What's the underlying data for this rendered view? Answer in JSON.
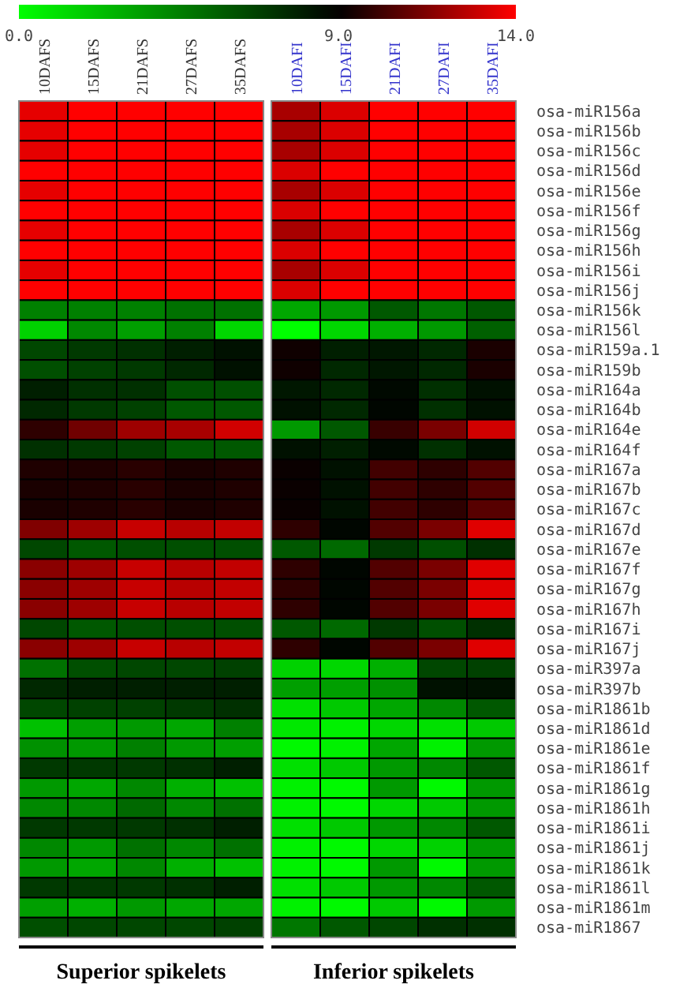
{
  "chart_data": {
    "type": "heatmap",
    "categories": [
      "10DAFS",
      "15DAFS",
      "21DAFS",
      "27DAFS",
      "35DAFS",
      "10DAFI",
      "15DAFI",
      "21DAFI",
      "27DAFI",
      "35DAFI"
    ],
    "y_categories": [
      "osa-miR156a",
      "osa-miR156b",
      "osa-miR156c",
      "osa-miR156d",
      "osa-miR156e",
      "osa-miR156f",
      "osa-miR156g",
      "osa-miR156h",
      "osa-miR156i",
      "osa-miR156j",
      "osa-miR156k",
      "osa-miR156l",
      "osa-miR159a.1",
      "osa-miR159b",
      "osa-miR164a",
      "osa-miR164b",
      "osa-miR164e",
      "osa-miR164f",
      "osa-miR167a",
      "osa-miR167b",
      "osa-miR167c",
      "osa-miR167d",
      "osa-miR167e",
      "osa-miR167f",
      "osa-miR167g",
      "osa-miR167h",
      "osa-miR167i",
      "osa-miR167j",
      "osa-miR397a",
      "osa-miR397b",
      "osa-miR1861b",
      "osa-miR1861d",
      "osa-miR1861e",
      "osa-miR1861f",
      "osa-miR1861g",
      "osa-miR1861h",
      "osa-miR1861i",
      "osa-miR1861j",
      "osa-miR1861k",
      "osa-miR1861l",
      "osa-miR1861m",
      "osa-miR1867"
    ],
    "clim": [
      0,
      14
    ],
    "cticks": [
      {
        "value": 0,
        "label": "0.0"
      },
      {
        "value": 9,
        "label": "9.0"
      },
      {
        "value": 14,
        "label": "14.0"
      }
    ],
    "annotations": [
      "Superior spikelets",
      "Inferior spikelets"
    ],
    "cells": [
      [
        13.5,
        14,
        14,
        14,
        14,
        12.3,
        13.3,
        14,
        14,
        14
      ],
      [
        13.5,
        14,
        14,
        14,
        14,
        12.3,
        13.3,
        14,
        14,
        14
      ],
      [
        13.5,
        14,
        14,
        14,
        14,
        12.3,
        13.3,
        14,
        14,
        14
      ],
      [
        14,
        14,
        14,
        14,
        14,
        13.3,
        14,
        14,
        14,
        14
      ],
      [
        13.5,
        14,
        14,
        14,
        14,
        12.3,
        13.3,
        14,
        14,
        14
      ],
      [
        14,
        14,
        14,
        14,
        14,
        13.3,
        14,
        14,
        14,
        14
      ],
      [
        13.5,
        14,
        14,
        14,
        14,
        12.3,
        13.3,
        14,
        14,
        14
      ],
      [
        14,
        14,
        14,
        14,
        14,
        13.3,
        14,
        14,
        14,
        14
      ],
      [
        13.5,
        14,
        14,
        14,
        14,
        12.3,
        13.3,
        14,
        14,
        14
      ],
      [
        14,
        14,
        14,
        14,
        14,
        13.3,
        14,
        14,
        14,
        14
      ],
      [
        4.5,
        4.5,
        4.5,
        5,
        5,
        3.1,
        3.6,
        5.9,
        4.8,
        5.9
      ],
      [
        1.6,
        4.2,
        3.4,
        4.5,
        1.4,
        0,
        1.4,
        2.8,
        3.6,
        5.6
      ],
      [
        6.5,
        7,
        7.3,
        7.9,
        8.4,
        9.3,
        7.9,
        8.2,
        7.6,
        9.5
      ],
      [
        6.2,
        6.7,
        7,
        7.6,
        8.4,
        9.3,
        7.6,
        8.2,
        7.6,
        9.5
      ],
      [
        7.9,
        7.3,
        7.3,
        6.2,
        6.2,
        8.2,
        7.6,
        8.7,
        7.3,
        8.4
      ],
      [
        7.6,
        7,
        6.7,
        5.9,
        5.9,
        8.4,
        7.6,
        8.8,
        7.3,
        8.4
      ],
      [
        9.9,
        11.2,
        12.1,
        12.3,
        13.1,
        3.6,
        5.9,
        10.1,
        11.4,
        13.1
      ],
      [
        7.3,
        7,
        6.7,
        5.9,
        5.9,
        8.4,
        7.9,
        8.7,
        7.3,
        8.4
      ],
      [
        9.6,
        9.6,
        9.8,
        9.5,
        9.6,
        9.2,
        8.4,
        10.3,
        9.9,
        10.6
      ],
      [
        9.5,
        9.6,
        9.8,
        9.5,
        9.6,
        9.2,
        8.4,
        10.3,
        9.9,
        10.6
      ],
      [
        9.5,
        9.6,
        9.8,
        9.5,
        9.6,
        9.2,
        8.4,
        10.3,
        9.9,
        10.7
      ],
      [
        11.5,
        12.1,
        12.9,
        12.6,
        12.8,
        9.9,
        8.8,
        10.6,
        11.4,
        13.4
      ],
      [
        6.5,
        5.9,
        6.2,
        6.2,
        6.2,
        5.9,
        5.3,
        7,
        6.2,
        7.3
      ],
      [
        11.7,
        12.1,
        12.9,
        12.6,
        12.8,
        9.9,
        8.8,
        10.6,
        11.4,
        13.4
      ],
      [
        11.7,
        12.1,
        12.9,
        12.6,
        12.8,
        9.9,
        8.8,
        10.6,
        11.4,
        13.4
      ],
      [
        11.7,
        12.1,
        12.9,
        12.6,
        12.8,
        9.9,
        8.8,
        10.6,
        11.4,
        13.4
      ],
      [
        6.5,
        5.9,
        6.2,
        6.2,
        6.2,
        5.9,
        5.3,
        7,
        6.2,
        7.3
      ],
      [
        11.7,
        12.1,
        12.9,
        12.6,
        12.8,
        9.9,
        8.8,
        10.6,
        11.4,
        13.4
      ],
      [
        5,
        6.2,
        6.5,
        6.5,
        6.7,
        1.6,
        1.4,
        2.8,
        6.5,
        6.7
      ],
      [
        7.6,
        7.9,
        7.9,
        7.9,
        7.9,
        3.4,
        3.4,
        3.9,
        8.4,
        8.4
      ],
      [
        6.5,
        6.7,
        6.7,
        7,
        7.3,
        1.1,
        1.9,
        3.1,
        4.2,
        5.9
      ],
      [
        2.2,
        3.4,
        3.6,
        3.1,
        4.5,
        0.8,
        0.5,
        1.4,
        1.1,
        1.9
      ],
      [
        3.9,
        3.6,
        4.5,
        3.6,
        3.4,
        0.2,
        0.5,
        3.1,
        0.5,
        3.6
      ],
      [
        7,
        7,
        7,
        7.3,
        7.9,
        1.1,
        1.9,
        3.6,
        4.2,
        5.9
      ],
      [
        3.6,
        3.1,
        4.2,
        2.8,
        2.2,
        0.5,
        0.2,
        3.6,
        0.2,
        3.6
      ],
      [
        4.2,
        4.2,
        5.3,
        4.2,
        5,
        0.5,
        0.2,
        1.4,
        1.9,
        3.6
      ],
      [
        7,
        7,
        7,
        7.3,
        7.9,
        1.1,
        1.9,
        3.6,
        4.2,
        5.9
      ],
      [
        4.2,
        3.6,
        5,
        4.2,
        5,
        0.5,
        0.2,
        1.4,
        1.6,
        3.6
      ],
      [
        3.6,
        3.1,
        4.2,
        2.8,
        2.2,
        0.5,
        0.2,
        3.6,
        0.2,
        3.6
      ],
      [
        7,
        7,
        7,
        7.3,
        7.9,
        1.1,
        1.9,
        3.6,
        4.2,
        5.9
      ],
      [
        3.4,
        2.8,
        3.6,
        3.1,
        3.1,
        0.5,
        0.2,
        1.9,
        0.2,
        3.6
      ],
      [
        6.2,
        6.5,
        6.5,
        6.5,
        6.7,
        4.8,
        5.9,
        6.5,
        7.3,
        7.3
      ]
    ]
  }
}
